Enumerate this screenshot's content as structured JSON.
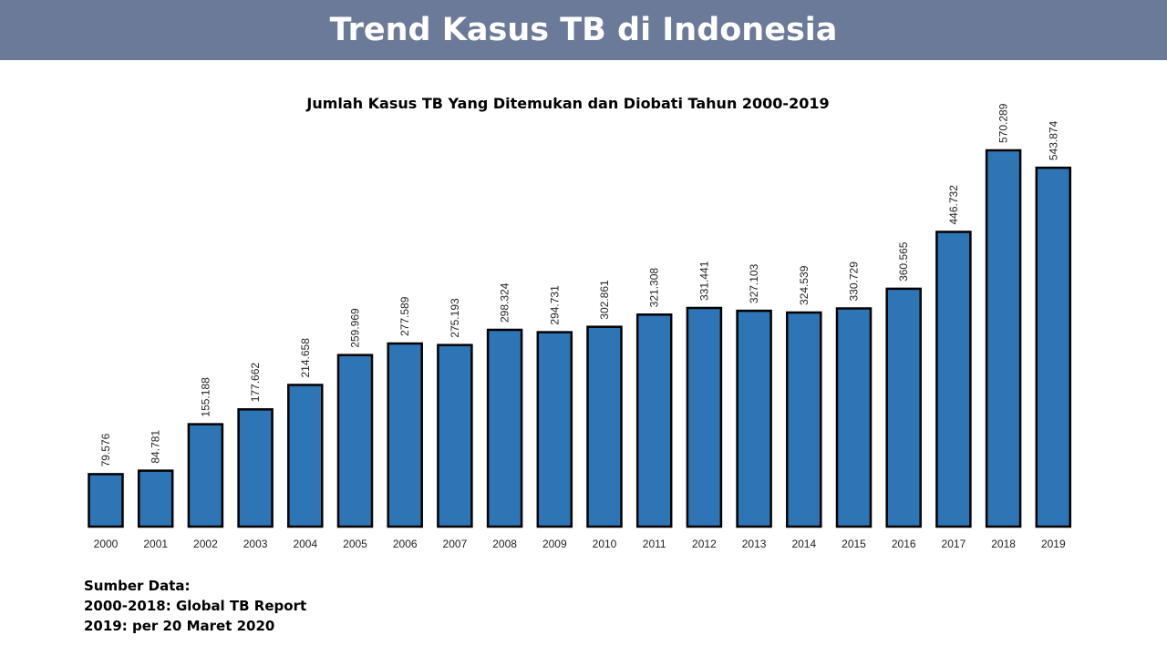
{
  "slide": {
    "title": "Trend Kasus TB di Indonesia"
  },
  "chart_data": {
    "type": "bar",
    "title": "Jumlah Kasus TB Yang Ditemukan dan Diobati Tahun 2000-2019",
    "xlabel": "",
    "ylabel": "",
    "categories": [
      "2000",
      "2001",
      "2002",
      "2003",
      "2004",
      "2005",
      "2006",
      "2007",
      "2008",
      "2009",
      "2010",
      "2011",
      "2012",
      "2013",
      "2014",
      "2015",
      "2016",
      "2017",
      "2018",
      "2019"
    ],
    "values": [
      79576,
      84781,
      155188,
      177662,
      214658,
      259969,
      277589,
      275193,
      298324,
      294731,
      302861,
      321308,
      331441,
      327103,
      324539,
      330729,
      360565,
      446732,
      570289,
      543874
    ],
    "value_labels": [
      "79.576",
      "84.781",
      "155.188",
      "177.662",
      "214.658",
      "259.969",
      "277.589",
      "275.193",
      "298.324",
      "294.731",
      "302.861",
      "321.308",
      "331.441",
      "327.103",
      "324.539",
      "330.729",
      "360.565",
      "446.732",
      "570.289",
      "543.874"
    ],
    "ylim": [
      0,
      570289
    ],
    "grid": false,
    "legend": "none",
    "bar_color": "#2e75b6"
  },
  "source": {
    "heading": "Sumber Data:",
    "line1": "2000-2018: Global TB Report",
    "line2": "2019: per 20 Maret 2020"
  },
  "colors": {
    "header_band": "#6b7a99",
    "bar": "#2e75b6"
  }
}
